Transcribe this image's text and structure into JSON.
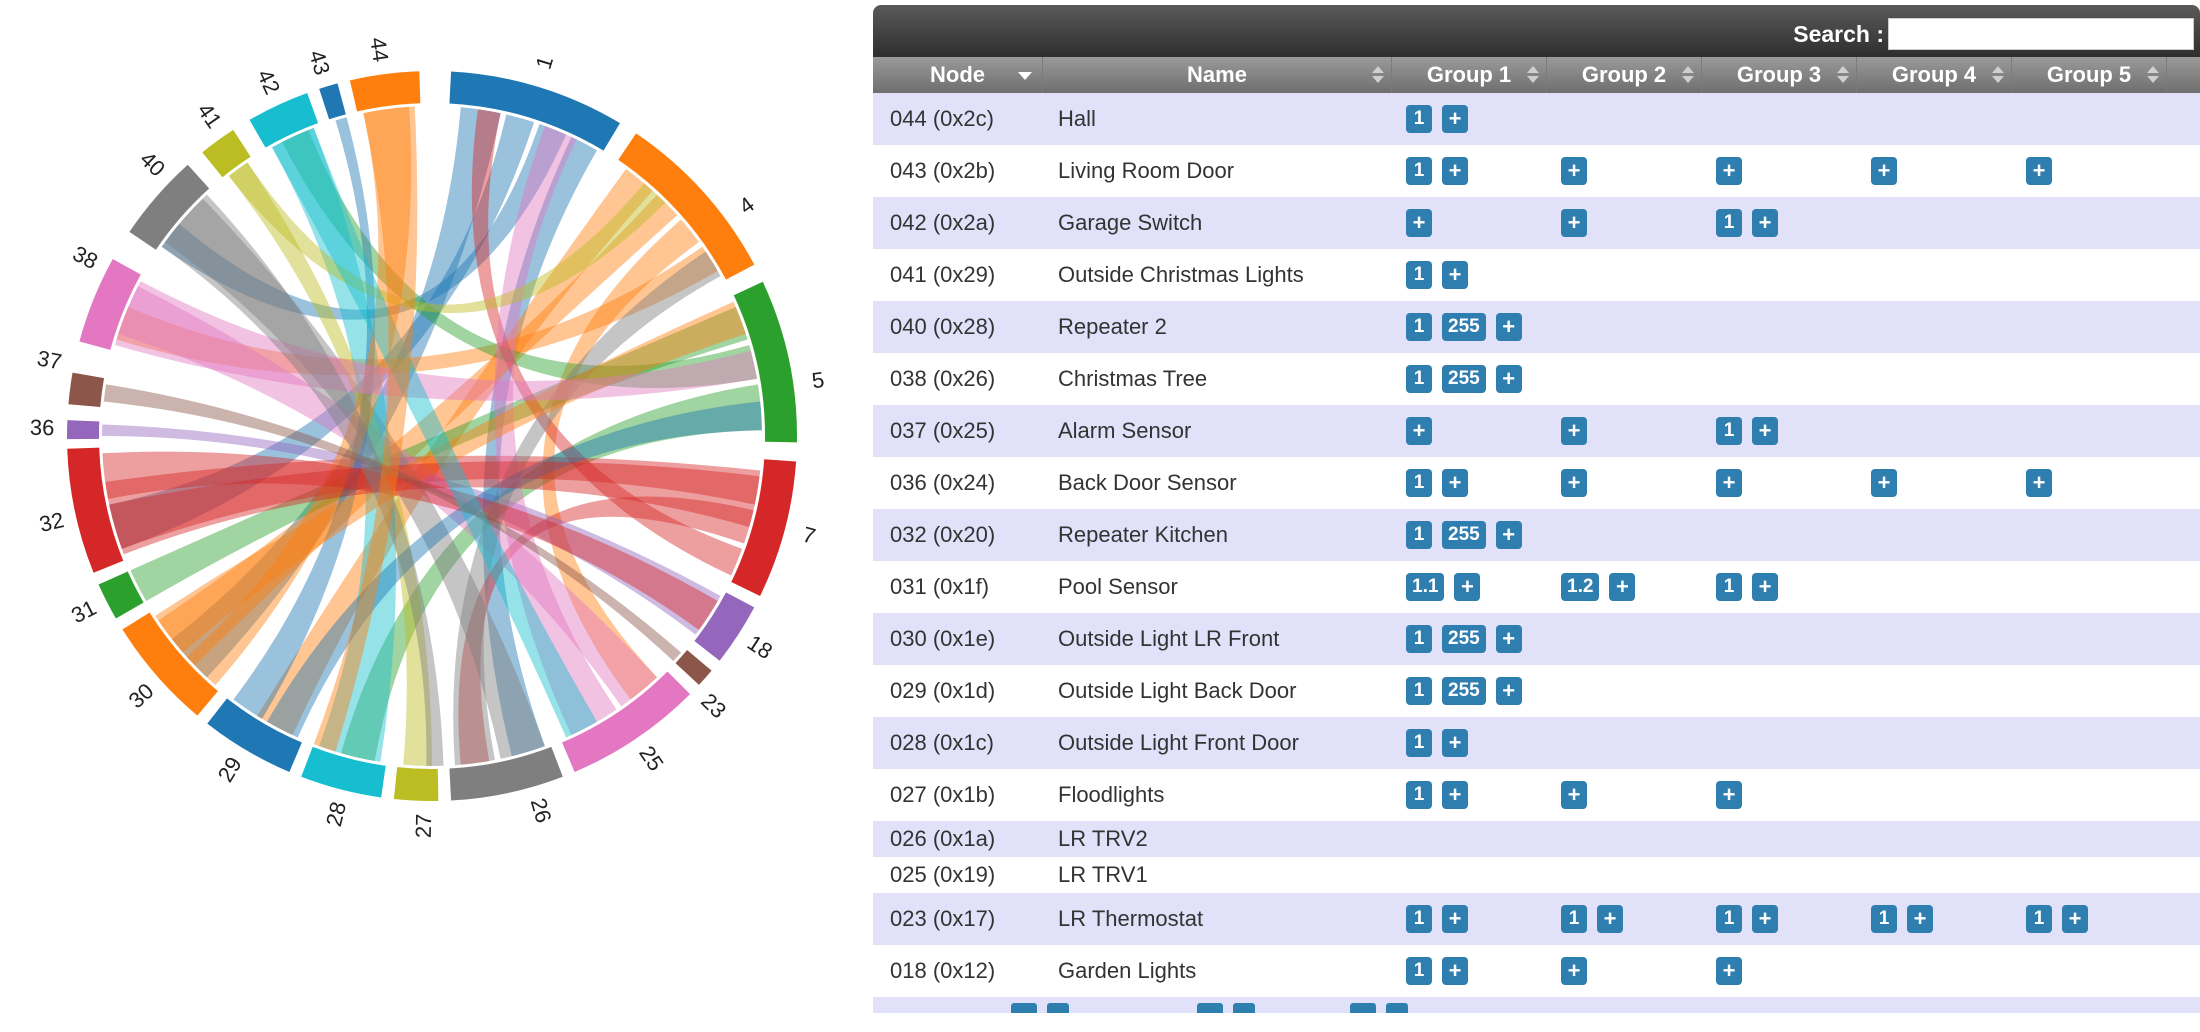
{
  "chord": {
    "labels": [
      {
        "id": "chord-label-1",
        "text": "1",
        "angle": 17
      },
      {
        "id": "chord-label-4",
        "text": "4",
        "angle": 54
      },
      {
        "id": "chord-label-5",
        "text": "5",
        "angle": 82
      },
      {
        "id": "chord-label-7",
        "text": "7",
        "angle": 105
      },
      {
        "id": "chord-label-18",
        "text": "18",
        "angle": 123
      },
      {
        "id": "chord-label-23",
        "text": "23",
        "angle": 134
      },
      {
        "id": "chord-label-25",
        "text": "25",
        "angle": 146
      },
      {
        "id": "chord-label-26",
        "text": "26",
        "angle": 164
      },
      {
        "id": "chord-label-27",
        "text": "27",
        "angle": 181
      },
      {
        "id": "chord-label-28",
        "text": "28",
        "angle": 194
      },
      {
        "id": "chord-label-29",
        "text": "29",
        "angle": 211
      },
      {
        "id": "chord-label-30",
        "text": "30",
        "angle": 228
      },
      {
        "id": "chord-label-31",
        "text": "31",
        "angle": 243
      },
      {
        "id": "chord-label-32",
        "text": "32",
        "angle": 257
      },
      {
        "id": "chord-label-36",
        "text": "36",
        "angle": 271
      },
      {
        "id": "chord-label-37",
        "text": "37",
        "angle": 281
      },
      {
        "id": "chord-label-38",
        "text": "38",
        "angle": 297
      },
      {
        "id": "chord-label-40",
        "text": "40",
        "angle": 314
      },
      {
        "id": "chord-label-41",
        "text": "41",
        "angle": 325
      },
      {
        "id": "chord-label-42",
        "text": "42",
        "angle": 335
      },
      {
        "id": "chord-label-43",
        "text": "43",
        "angle": 343
      },
      {
        "id": "chord-label-44",
        "text": "44",
        "angle": 352
      }
    ],
    "arcs": [
      {
        "start": 3,
        "end": 31,
        "color": "#1f77b4"
      },
      {
        "start": 34,
        "end": 62,
        "color": "#ff7f0e"
      },
      {
        "start": 65,
        "end": 91,
        "color": "#2ca02c"
      },
      {
        "start": 94,
        "end": 116,
        "color": "#d62728"
      },
      {
        "start": 118,
        "end": 128,
        "color": "#9467bd"
      },
      {
        "start": 130,
        "end": 133,
        "color": "#8c564b"
      },
      {
        "start": 135,
        "end": 157,
        "color": "#e377c2"
      },
      {
        "start": 159,
        "end": 177,
        "color": "#7f7f7f"
      },
      {
        "start": 179,
        "end": 186,
        "color": "#bcbd22"
      },
      {
        "start": 188,
        "end": 201,
        "color": "#17becf"
      },
      {
        "start": 203,
        "end": 218,
        "color": "#1f77b4"
      },
      {
        "start": 220,
        "end": 238,
        "color": "#ff7f0e"
      },
      {
        "start": 240,
        "end": 246,
        "color": "#2ca02c"
      },
      {
        "start": 248,
        "end": 268,
        "color": "#d62728"
      },
      {
        "start": 269.5,
        "end": 272.5,
        "color": "#9467bd"
      },
      {
        "start": 275,
        "end": 280,
        "color": "#8c564b"
      },
      {
        "start": 285,
        "end": 299,
        "color": "#e377c2"
      },
      {
        "start": 304,
        "end": 318,
        "color": "#7f7f7f"
      },
      {
        "start": 321,
        "end": 327,
        "color": "#bcbd22"
      },
      {
        "start": 330,
        "end": 340,
        "color": "#17becf"
      },
      {
        "start": 342,
        "end": 345,
        "color": "#1f77b4"
      },
      {
        "start": 347,
        "end": 358,
        "color": "#ff7f0e"
      }
    ],
    "ribbons": [
      {
        "s1": 5,
        "s2": 12,
        "t1": 223,
        "t2": 232,
        "color": "#1f77b4"
      },
      {
        "s1": 13,
        "s2": 18,
        "t1": 250,
        "t2": 258,
        "color": "#1f77b4"
      },
      {
        "s1": 19,
        "s2": 24,
        "t1": 305,
        "t2": 310,
        "color": "#1f77b4"
      },
      {
        "s1": 25,
        "s2": 30,
        "t1": 160,
        "t2": 166,
        "color": "#1f77b4"
      },
      {
        "s1": 36,
        "s2": 42,
        "t1": 205,
        "t2": 212,
        "color": "#ff7f0e"
      },
      {
        "s1": 43,
        "s2": 48,
        "t1": 226,
        "t2": 236,
        "color": "#ff7f0e"
      },
      {
        "s1": 49,
        "s2": 54,
        "t1": 137,
        "t2": 143,
        "color": "#ff7f0e"
      },
      {
        "s1": 55,
        "s2": 60,
        "t1": 287,
        "t2": 293,
        "color": "#ff7f0e"
      },
      {
        "s1": 67,
        "s2": 73,
        "t1": 240,
        "t2": 246,
        "color": "#2ca02c"
      },
      {
        "s1": 74,
        "s2": 80,
        "t1": 333,
        "t2": 338,
        "color": "#2ca02c"
      },
      {
        "s1": 81,
        "s2": 89,
        "t1": 190,
        "t2": 196,
        "color": "#2ca02c"
      },
      {
        "s1": 96,
        "s2": 102,
        "t1": 250,
        "t2": 262,
        "color": "#d62728"
      },
      {
        "s1": 103,
        "s2": 109,
        "t1": 170,
        "t2": 175,
        "color": "#d62728"
      },
      {
        "s1": 110,
        "s2": 115,
        "t1": 8,
        "t2": 12,
        "color": "#d62728"
      },
      {
        "s1": 119,
        "s2": 127,
        "t1": 270,
        "t2": 272,
        "color": "#9467bd"
      },
      {
        "s1": 137,
        "s2": 145,
        "t1": 288,
        "t2": 297,
        "color": "#e377c2"
      },
      {
        "s1": 146,
        "s2": 155,
        "t1": 20,
        "t2": 26,
        "color": "#e377c2"
      },
      {
        "s1": 160,
        "s2": 168,
        "t1": 306,
        "t2": 316,
        "color": "#7f7f7f"
      },
      {
        "s1": 169,
        "s2": 176,
        "t1": 56,
        "t2": 61,
        "color": "#7f7f7f"
      },
      {
        "s1": 180,
        "s2": 185,
        "t1": 322,
        "t2": 326,
        "color": "#bcbd22"
      },
      {
        "s1": 189,
        "s2": 200,
        "t1": 331,
        "t2": 339,
        "color": "#17becf"
      },
      {
        "s1": 204,
        "s2": 210,
        "t1": 84,
        "t2": 89,
        "color": "#1f77b4"
      },
      {
        "s1": 211,
        "s2": 217,
        "t1": 343,
        "t2": 345,
        "color": "#1f77b4"
      },
      {
        "s1": 221,
        "s2": 228,
        "t1": 348,
        "t2": 356,
        "color": "#ff7f0e"
      },
      {
        "s1": 229,
        "s2": 237,
        "t1": 66,
        "t2": 72,
        "color": "#ff7f0e"
      },
      {
        "s1": 249,
        "s2": 258,
        "t1": 97,
        "t2": 106,
        "color": "#d62728"
      },
      {
        "s1": 259,
        "s2": 267,
        "t1": 120,
        "t2": 126,
        "color": "#d62728"
      },
      {
        "s1": 276,
        "s2": 279,
        "t1": 131,
        "t2": 133,
        "color": "#8c564b"
      },
      {
        "s1": 286,
        "s2": 298,
        "t1": 75,
        "t2": 80,
        "color": "#e377c2"
      },
      {
        "s1": 305,
        "s2": 317,
        "t1": 178,
        "t2": 181,
        "color": "#7f7f7f"
      },
      {
        "s1": 322,
        "s2": 326,
        "t1": 40,
        "t2": 45,
        "color": "#bcbd22"
      },
      {
        "s1": 331,
        "s2": 339,
        "t1": 150,
        "t2": 156,
        "color": "#17becf"
      },
      {
        "s1": 348,
        "s2": 357,
        "t1": 197,
        "t2": 201,
        "color": "#ff7f0e"
      }
    ]
  },
  "table": {
    "search_label": "Search :",
    "search_value": "",
    "columns": [
      {
        "label": "Node",
        "sort": "desc"
      },
      {
        "label": "Name",
        "sort": "both"
      },
      {
        "label": "Group 1",
        "sort": "both"
      },
      {
        "label": "Group 2",
        "sort": "both"
      },
      {
        "label": "Group 3",
        "sort": "both"
      },
      {
        "label": "Group 4",
        "sort": "both"
      },
      {
        "label": "Group 5",
        "sort": "both"
      }
    ],
    "rows": [
      {
        "node": "044 (0x2c)",
        "name": "Hall",
        "groups": [
          [
            "1",
            "+"
          ],
          [],
          [],
          [],
          []
        ]
      },
      {
        "node": "043 (0x2b)",
        "name": "Living Room Door",
        "groups": [
          [
            "1",
            "+"
          ],
          [
            "+"
          ],
          [
            "+"
          ],
          [
            "+"
          ],
          [
            "+"
          ]
        ]
      },
      {
        "node": "042 (0x2a)",
        "name": "Garage Switch",
        "groups": [
          [
            "+"
          ],
          [
            "+"
          ],
          [
            "1",
            "+"
          ],
          [],
          []
        ]
      },
      {
        "node": "041 (0x29)",
        "name": "Outside Christmas Lights",
        "groups": [
          [
            "1",
            "+"
          ],
          [],
          [],
          [],
          []
        ]
      },
      {
        "node": "040 (0x28)",
        "name": "Repeater 2",
        "groups": [
          [
            "1",
            "255",
            "+"
          ],
          [],
          [],
          [],
          []
        ]
      },
      {
        "node": "038 (0x26)",
        "name": "Christmas Tree",
        "groups": [
          [
            "1",
            "255",
            "+"
          ],
          [],
          [],
          [],
          []
        ]
      },
      {
        "node": "037 (0x25)",
        "name": "Alarm Sensor",
        "groups": [
          [
            "+"
          ],
          [
            "+"
          ],
          [
            "1",
            "+"
          ],
          [],
          []
        ]
      },
      {
        "node": "036 (0x24)",
        "name": "Back Door Sensor",
        "groups": [
          [
            "1",
            "+"
          ],
          [
            "+"
          ],
          [
            "+"
          ],
          [
            "+"
          ],
          [
            "+"
          ]
        ]
      },
      {
        "node": "032 (0x20)",
        "name": "Repeater Kitchen",
        "groups": [
          [
            "1",
            "255",
            "+"
          ],
          [],
          [],
          [],
          []
        ]
      },
      {
        "node": "031 (0x1f)",
        "name": "Pool Sensor",
        "groups": [
          [
            "1.1",
            "+"
          ],
          [
            "1.2",
            "+"
          ],
          [
            "1",
            "+"
          ],
          [],
          []
        ]
      },
      {
        "node": "030 (0x1e)",
        "name": "Outside Light LR Front",
        "groups": [
          [
            "1",
            "255",
            "+"
          ],
          [],
          [],
          [],
          []
        ]
      },
      {
        "node": "029 (0x1d)",
        "name": "Outside Light Back Door",
        "groups": [
          [
            "1",
            "255",
            "+"
          ],
          [],
          [],
          [],
          []
        ]
      },
      {
        "node": "028 (0x1c)",
        "name": "Outside Light Front Door",
        "groups": [
          [
            "1",
            "+"
          ],
          [],
          [],
          [],
          []
        ]
      },
      {
        "node": "027 (0x1b)",
        "name": "Floodlights",
        "groups": [
          [
            "1",
            "+"
          ],
          [
            "+"
          ],
          [
            "+"
          ],
          [],
          []
        ]
      },
      {
        "node": "026 (0x1a)",
        "name": "LR TRV2",
        "groups": [
          [],
          [],
          [],
          [],
          []
        ],
        "short": true
      },
      {
        "node": "025 (0x19)",
        "name": "LR TRV1",
        "groups": [
          [],
          [],
          [],
          [],
          []
        ],
        "short": true
      },
      {
        "node": "023 (0x17)",
        "name": "LR Thermostat",
        "groups": [
          [
            "1",
            "+"
          ],
          [
            "1",
            "+"
          ],
          [
            "1",
            "+"
          ],
          [
            "1",
            "+"
          ],
          [
            "1",
            "+"
          ]
        ]
      },
      {
        "node": "018 (0x12)",
        "name": "Garden Lights",
        "groups": [
          [
            "1",
            "+"
          ],
          [
            "+"
          ],
          [
            "+"
          ],
          [],
          []
        ]
      }
    ]
  }
}
